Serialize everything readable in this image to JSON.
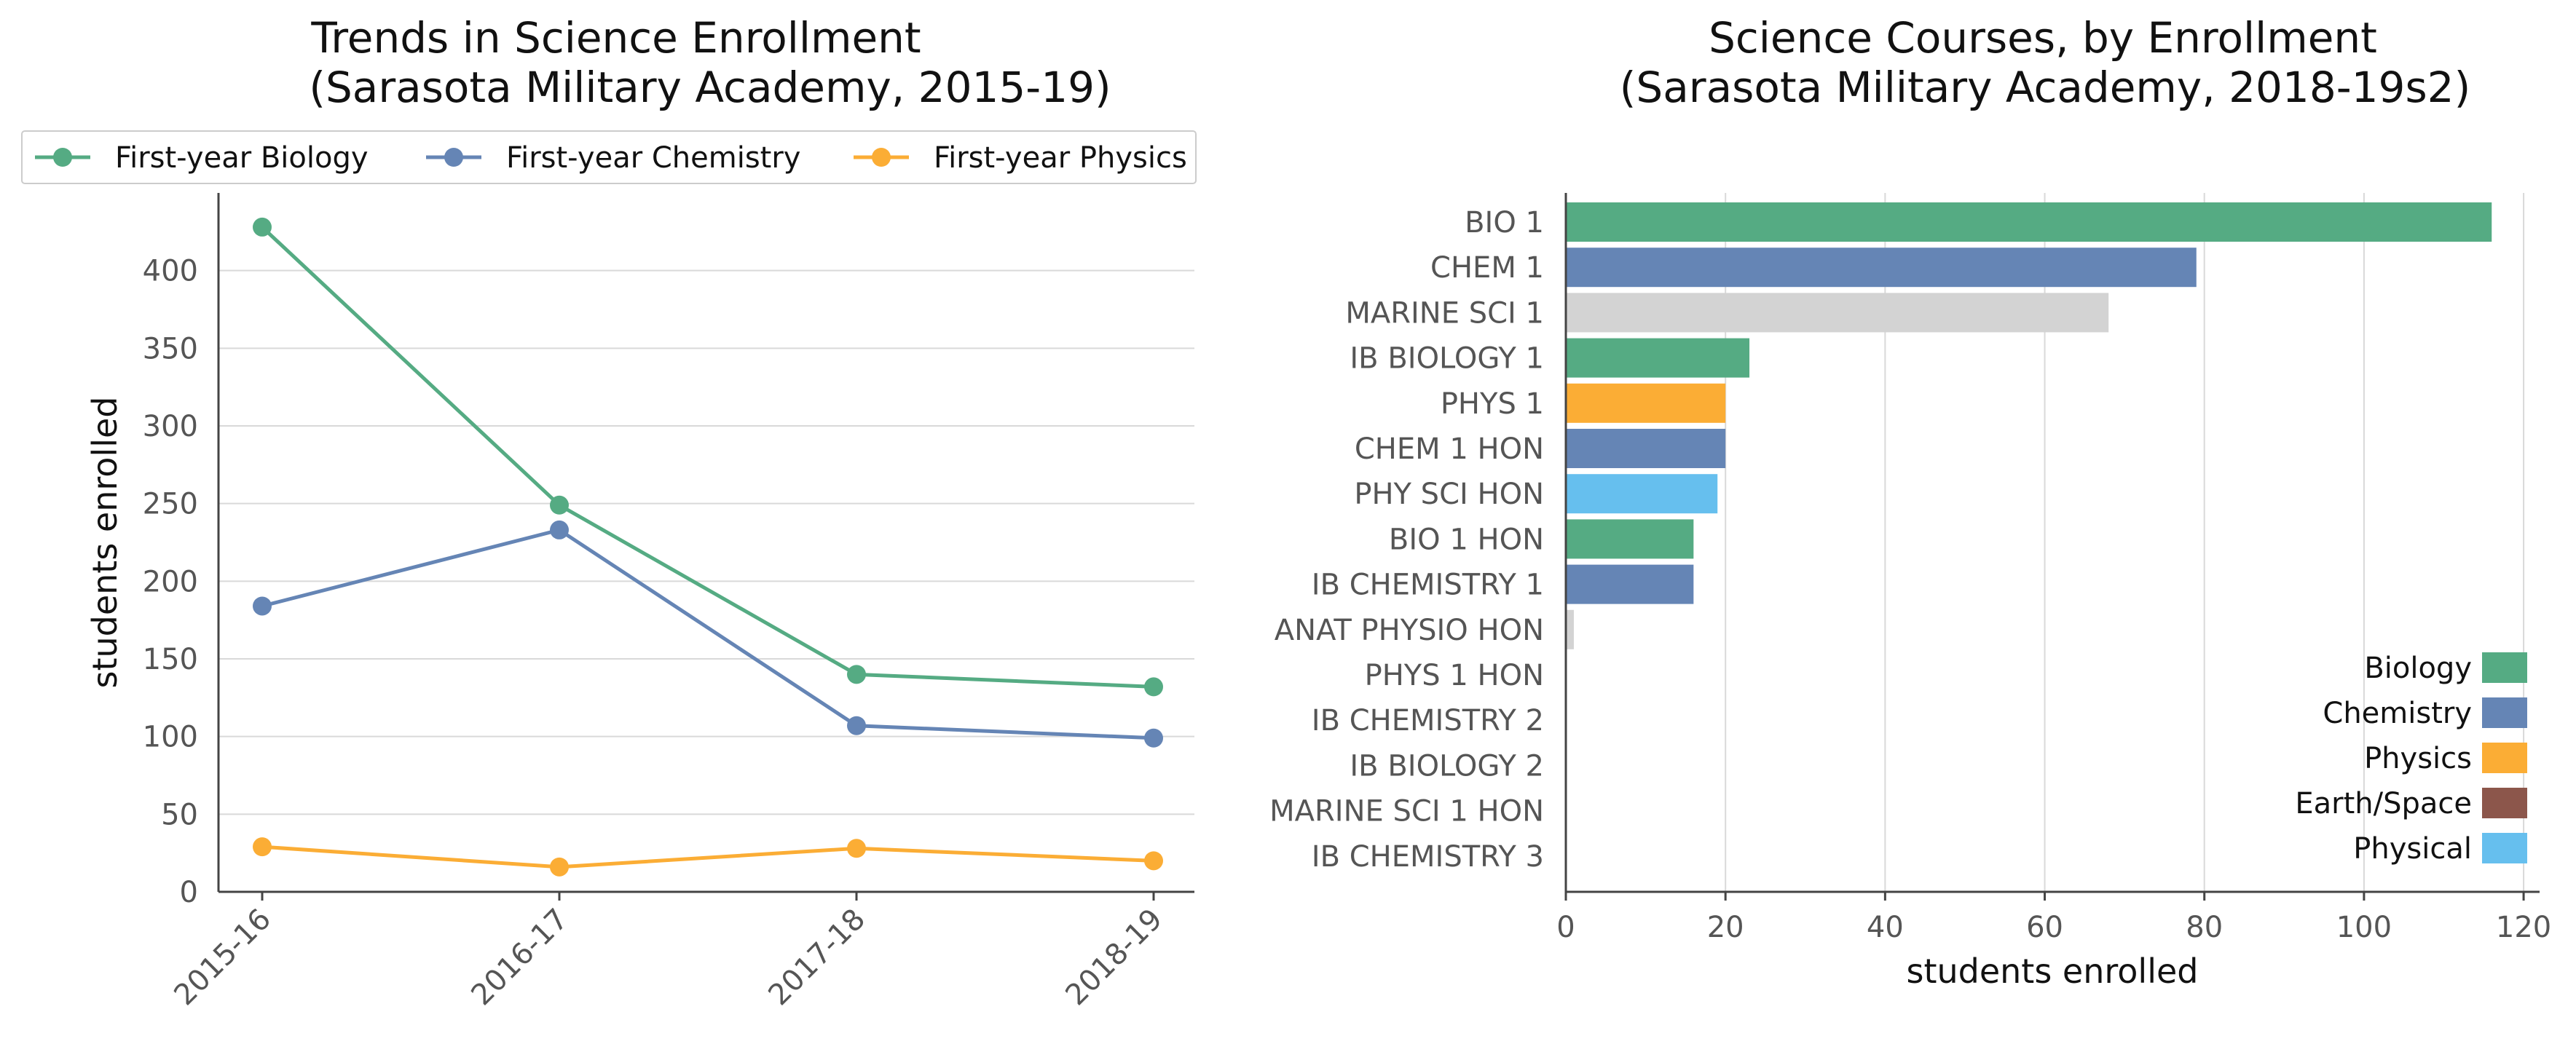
{
  "chart_data": [
    {
      "type": "line",
      "title": "Trends in Science Enrollment",
      "subtitle": "(Sarasota Military Academy, 2015-19)",
      "xlabel": "",
      "ylabel": "students enrolled",
      "categories": [
        "2015-16",
        "2016-17",
        "2017-18",
        "2018-19"
      ],
      "ylim": [
        0,
        450
      ],
      "yticks": [
        0,
        50,
        100,
        150,
        200,
        250,
        300,
        350,
        400
      ],
      "grid": true,
      "legend_position": "top",
      "series": [
        {
          "name": "First-year Biology",
          "color": "#55ab83",
          "values": [
            428,
            249,
            140,
            132
          ]
        },
        {
          "name": "First-year Chemistry",
          "color": "#6585b5",
          "values": [
            184,
            233,
            107,
            99
          ]
        },
        {
          "name": "First-year Physics",
          "color": "#fbad35",
          "values": [
            29,
            16,
            28,
            20
          ]
        }
      ]
    },
    {
      "type": "bar",
      "orientation": "horizontal",
      "title": "Science Courses, by Enrollment",
      "subtitle": "(Sarasota Military Academy, 2018-19s2)",
      "xlabel": "students enrolled",
      "ylabel": "",
      "xlim": [
        0,
        122
      ],
      "xticks": [
        0,
        20,
        40,
        60,
        80,
        100,
        120
      ],
      "grid": true,
      "legend_position": "bottom-right",
      "categories": [
        "BIO 1",
        "CHEM 1",
        "MARINE SCI 1",
        "IB BIOLOGY 1",
        "PHYS 1",
        "CHEM 1 HON",
        "PHY SCI HON",
        "BIO 1 HON",
        "IB CHEMISTRY 1",
        "ANAT PHYSIO HON",
        "PHYS 1 HON",
        "IB CHEMISTRY 2",
        "IB BIOLOGY 2",
        "MARINE SCI 1 HON",
        "IB CHEMISTRY 3"
      ],
      "values": [
        116,
        79,
        68,
        23,
        20,
        20,
        19,
        16,
        16,
        1,
        0,
        0,
        0,
        0,
        0
      ],
      "colors": [
        "#55ab83",
        "#6585b5",
        "#d3d3d3",
        "#55ab83",
        "#fbad35",
        "#6585b5",
        "#66bfee",
        "#55ab83",
        "#6585b5",
        "#d3d3d3",
        "#d3d3d3",
        "#d3d3d3",
        "#d3d3d3",
        "#d3d3d3",
        "#d3d3d3"
      ],
      "legend": [
        {
          "name": "Biology",
          "color": "#55ab83"
        },
        {
          "name": "Chemistry",
          "color": "#6585b5"
        },
        {
          "name": "Physics",
          "color": "#fbad35"
        },
        {
          "name": "Earth/Space",
          "color": "#8c564b"
        },
        {
          "name": "Physical",
          "color": "#66bfee"
        }
      ]
    }
  ]
}
